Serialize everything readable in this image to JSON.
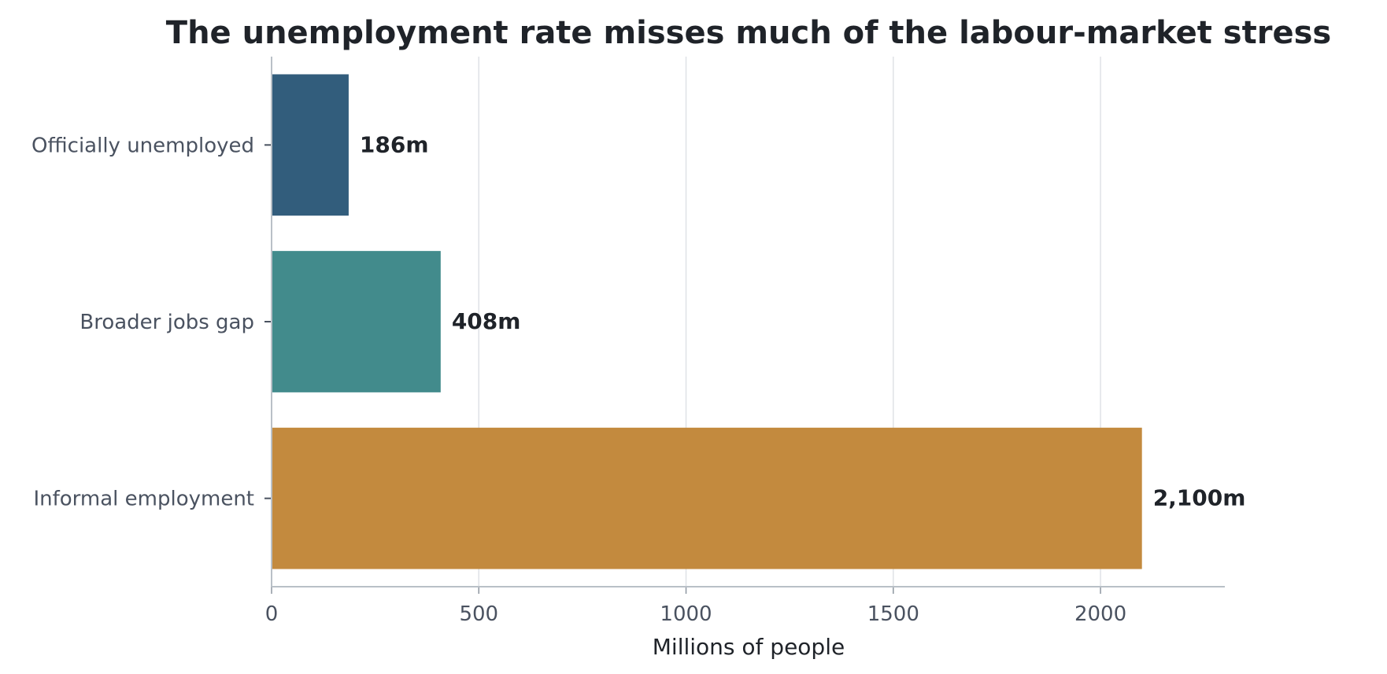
{
  "chart_data": {
    "type": "bar",
    "orientation": "horizontal",
    "title": "The unemployment rate misses much of the labour-market stress",
    "xlabel": "Millions of people",
    "ylabel": "",
    "categories": [
      "Officially unemployed",
      "Broader jobs gap",
      "Informal employment"
    ],
    "values": [
      186,
      408,
      2100
    ],
    "data_labels": [
      "186m",
      "408m",
      "2,100m"
    ],
    "colors": [
      "#325d7c",
      "#428b8c",
      "#c38a3e"
    ],
    "xlim": [
      0,
      2300
    ],
    "xticks": [
      0,
      500,
      1000,
      1500,
      2000
    ],
    "xtick_labels": [
      "0",
      "500",
      "1000",
      "1500",
      "2000"
    ],
    "grid": "vertical",
    "legend": "none"
  }
}
